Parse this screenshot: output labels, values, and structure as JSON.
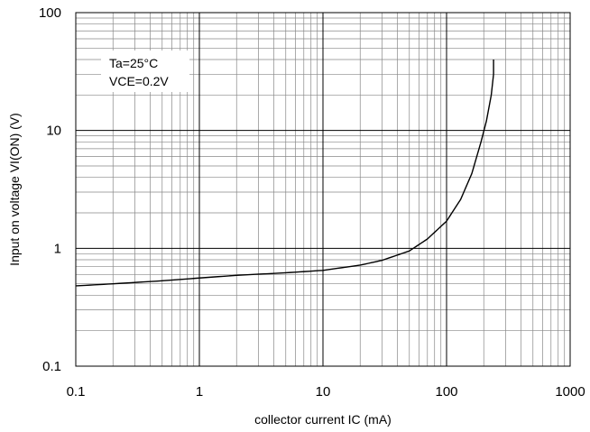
{
  "chart_data": {
    "type": "line",
    "title": "",
    "xlabel": "collector current IC (mA)",
    "ylabel": "Input on voltage VI(ON) (V)",
    "xscale": "log",
    "yscale": "log",
    "xlim": [
      0.1,
      1000
    ],
    "ylim": [
      0.1,
      100
    ],
    "x_ticks": [
      0.1,
      1,
      10,
      100,
      1000
    ],
    "x_tick_labels": [
      "0.1",
      "1",
      "10",
      "100",
      "1000"
    ],
    "y_ticks": [
      0.1,
      1,
      10,
      100
    ],
    "y_tick_labels": [
      "0.1",
      "1",
      "10",
      "100"
    ],
    "grid": true,
    "annotations": [
      "Ta=25°C",
      "VCE=0.2V"
    ],
    "annotation_placement": "top-left",
    "colors": {
      "line": "#000000",
      "grid_major": "#000000",
      "grid_minor": "#888888",
      "background": "#ffffff"
    },
    "series": [
      {
        "x": [
          0.1,
          0.2,
          0.5,
          1,
          2,
          5,
          10,
          20,
          30,
          50,
          70,
          100,
          130,
          160,
          190,
          210,
          230,
          240,
          240
        ],
        "y": [
          0.48,
          0.5,
          0.53,
          0.56,
          0.59,
          0.62,
          0.65,
          0.72,
          0.79,
          0.95,
          1.2,
          1.7,
          2.6,
          4.3,
          8.0,
          12,
          20,
          30,
          40
        ]
      }
    ]
  }
}
